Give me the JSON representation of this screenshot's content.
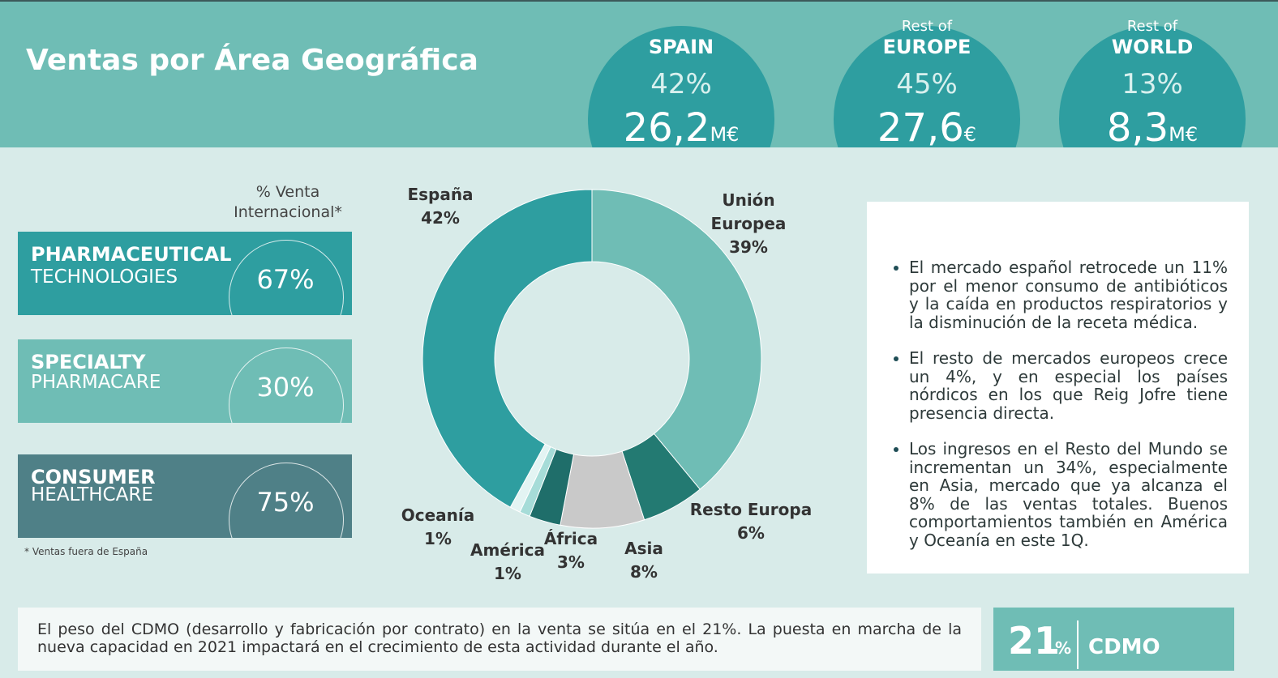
{
  "header": {
    "title": "Ventas por Área Geográfica"
  },
  "regions": [
    {
      "name": "SPAIN",
      "share": "42%",
      "amount": "26,2",
      "unit": "M€"
    },
    {
      "prefix": "Rest of",
      "name": "EUROPE",
      "share": "45%",
      "amount": "27,6",
      "unit": "€"
    },
    {
      "prefix": "Rest of",
      "name": "WORLD",
      "share": "13%",
      "amount": "8,3",
      "unit": "M€"
    }
  ],
  "segments": {
    "column_title": "% Venta Internacional*",
    "items": [
      {
        "line1": "PHARMACEUTICAL",
        "line2": "TECHNOLOGIES",
        "share": "67%"
      },
      {
        "line1": "SPECIALTY",
        "line2": "PHARMACARE",
        "share": "30%"
      },
      {
        "line1": "CONSUMER",
        "line2": "HEALTHCARE",
        "share": "75%"
      }
    ],
    "footnote": "* Ventas fuera de España"
  },
  "chart_data": {
    "type": "donut",
    "categories": [
      "Unión Europea",
      "Resto Europa",
      "Asia",
      "África",
      "América",
      "Oceanía",
      "España"
    ],
    "values": [
      39,
      6,
      8,
      3,
      1,
      1,
      42
    ],
    "value_labels": [
      "39%",
      "6%",
      "8%",
      "3%",
      "1%",
      "1%",
      "42%"
    ],
    "colors": [
      "#6fbdb5",
      "#237a72",
      "#c9c9c9",
      "#1f6e6a",
      "#a6dcd8",
      "#e3f4f3",
      "#2e9ea0"
    ]
  },
  "notes": [
    "El mercado español retrocede un 11% por el menor consumo de antibióticos y la caída en productos respiratorios y la disminución de la receta médica.",
    "El resto de mercados europeos crece un 4%, y en especial los países nórdicos en los que Reig Jofre tiene presencia directa.",
    "Los ingresos en el Resto del Mundo se incrementan un 34%, especialmente en Asia, mercado que ya alcanza el 8% de las ventas totales. Buenos comportamientos también en América y Oceanía en este 1Q."
  ],
  "footer": {
    "text": "El peso del CDMO (desarrollo y fabricación por contrato) en la venta se sitúa en el 21%. La puesta en marcha de la nueva capacidad en 2021 impactará en el crecimiento de esta actividad durante el año.",
    "kpi": "21",
    "kpi_unit": "%",
    "kpi_label": "CDMO"
  }
}
